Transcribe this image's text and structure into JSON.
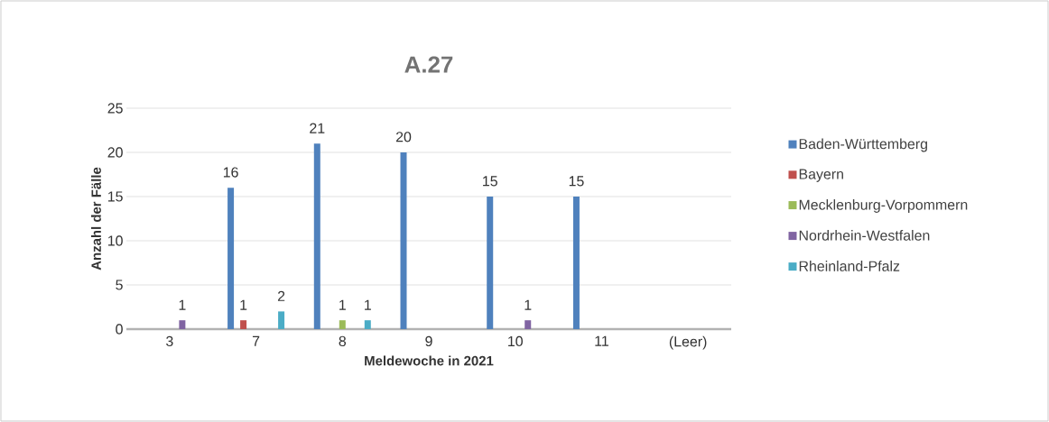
{
  "chart_data": {
    "type": "bar",
    "title": "A.27",
    "xlabel": "Meldewoche in 2021",
    "ylabel": "Anzahl der Fälle",
    "categories": [
      "3",
      "7",
      "8",
      "9",
      "10",
      "11",
      "(Leer)"
    ],
    "series": [
      {
        "name": "Baden-Württemberg",
        "color": "#4f81bd",
        "values": [
          null,
          16,
          21,
          20,
          15,
          15,
          null
        ]
      },
      {
        "name": "Bayern",
        "color": "#c0504d",
        "values": [
          null,
          1,
          null,
          null,
          null,
          null,
          null
        ]
      },
      {
        "name": "Mecklenburg-Vorpommern",
        "color": "#9bbb59",
        "values": [
          null,
          null,
          1,
          null,
          null,
          null,
          null
        ]
      },
      {
        "name": "Nordrhein-Westfalen",
        "color": "#8064a2",
        "values": [
          1,
          null,
          null,
          null,
          1,
          null,
          null
        ]
      },
      {
        "name": "Rheinland-Pfalz",
        "color": "#4bacc6",
        "values": [
          null,
          2,
          1,
          null,
          null,
          null,
          null
        ]
      }
    ],
    "ylim": [
      0,
      25
    ],
    "yticks": [
      0,
      5,
      10,
      15,
      20,
      25
    ],
    "grid": "y",
    "legend": "right",
    "data_labels": true
  }
}
